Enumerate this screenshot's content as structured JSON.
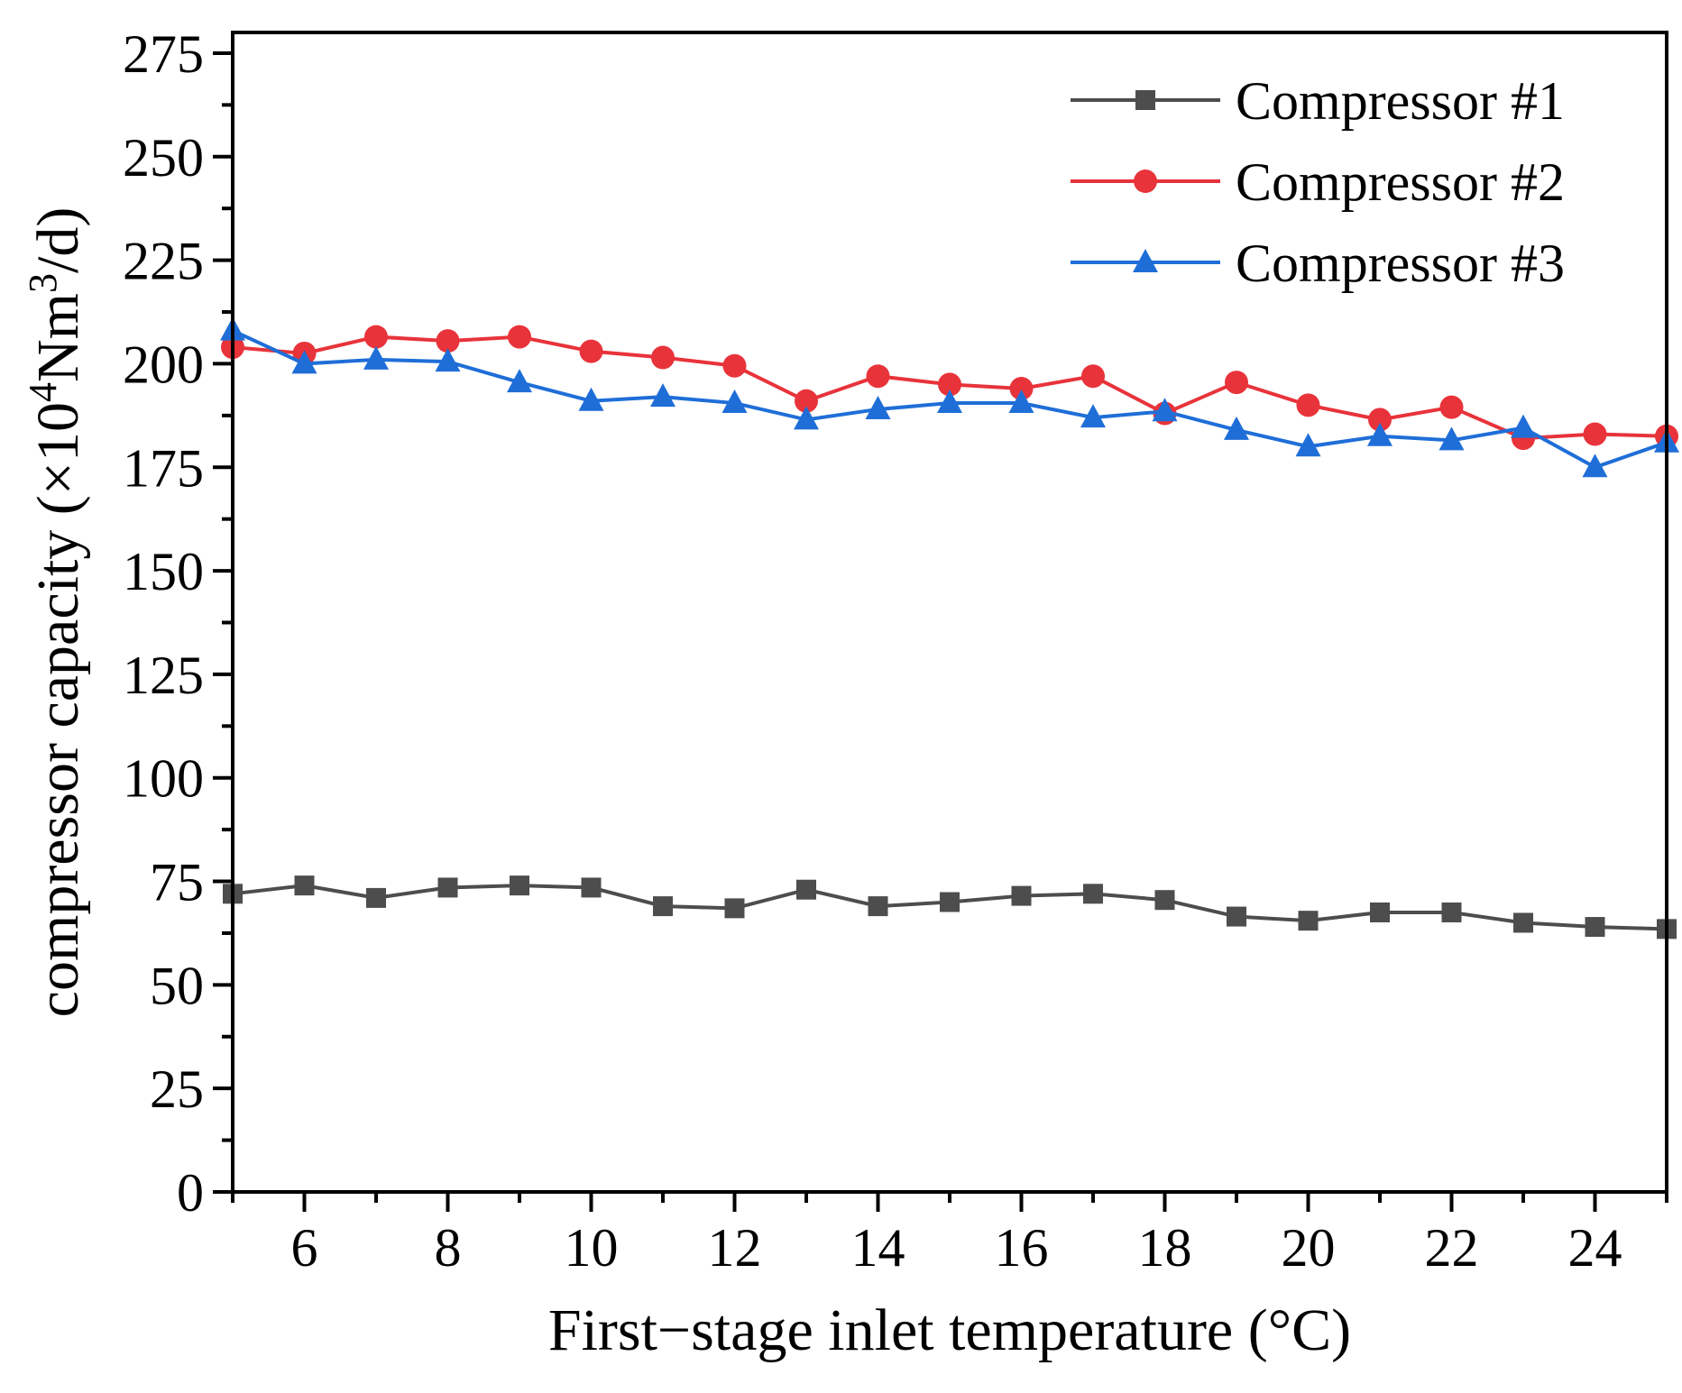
{
  "chart_data": {
    "type": "line",
    "xlabel": "First−stage inlet temperature (°C)",
    "ylabel_main": "compressor capacity (×10",
    "ylabel_sup1": "4",
    "ylabel_mid": "Nm",
    "ylabel_sup2": "3",
    "ylabel_end": "/d)",
    "xlim": [
      5,
      25
    ],
    "ylim": [
      0,
      280
    ],
    "x_major_ticks": [
      6,
      8,
      10,
      12,
      14,
      16,
      18,
      20,
      22,
      24
    ],
    "x_minor_ticks": [
      5,
      7,
      9,
      11,
      13,
      15,
      17,
      19,
      21,
      23,
      25
    ],
    "y_major_ticks": [
      0,
      25,
      50,
      75,
      100,
      125,
      150,
      175,
      200,
      225,
      250,
      275
    ],
    "y_minor_ticks": [
      12.5,
      37.5,
      62.5,
      87.5,
      112.5,
      137.5,
      162.5,
      187.5,
      212.5,
      237.5,
      262.5
    ],
    "x": [
      5,
      6,
      7,
      8,
      9,
      10,
      11,
      12,
      13,
      14,
      15,
      16,
      17,
      18,
      19,
      20,
      21,
      22,
      23,
      24,
      25
    ],
    "legend_position": "top-right",
    "grid": false,
    "series": [
      {
        "name": "Compressor #1",
        "color": "#4d4d4d",
        "marker": "square",
        "values": [
          72.0,
          74.0,
          71.0,
          73.5,
          74.0,
          73.5,
          69.0,
          68.5,
          73.0,
          69.0,
          70.0,
          71.5,
          72.0,
          70.5,
          66.5,
          65.5,
          67.5,
          67.5,
          65.0,
          64.0,
          63.5
        ]
      },
      {
        "name": "Compressor #2",
        "color": "#e8333a",
        "marker": "circle",
        "values": [
          204.0,
          202.5,
          206.5,
          205.5,
          206.5,
          203.0,
          201.5,
          199.5,
          191.0,
          197.0,
          195.0,
          194.0,
          197.0,
          188.0,
          195.5,
          190.0,
          186.5,
          189.5,
          182.0,
          183.0,
          182.5
        ]
      },
      {
        "name": "Compressor #3",
        "color": "#1f6ed8",
        "marker": "triangle",
        "values": [
          208.0,
          200.0,
          201.0,
          200.5,
          195.5,
          191.0,
          192.0,
          190.5,
          186.5,
          189.0,
          190.5,
          190.5,
          187.0,
          188.5,
          184.0,
          180.0,
          182.5,
          181.5,
          184.5,
          175.0,
          181.0
        ]
      }
    ]
  }
}
